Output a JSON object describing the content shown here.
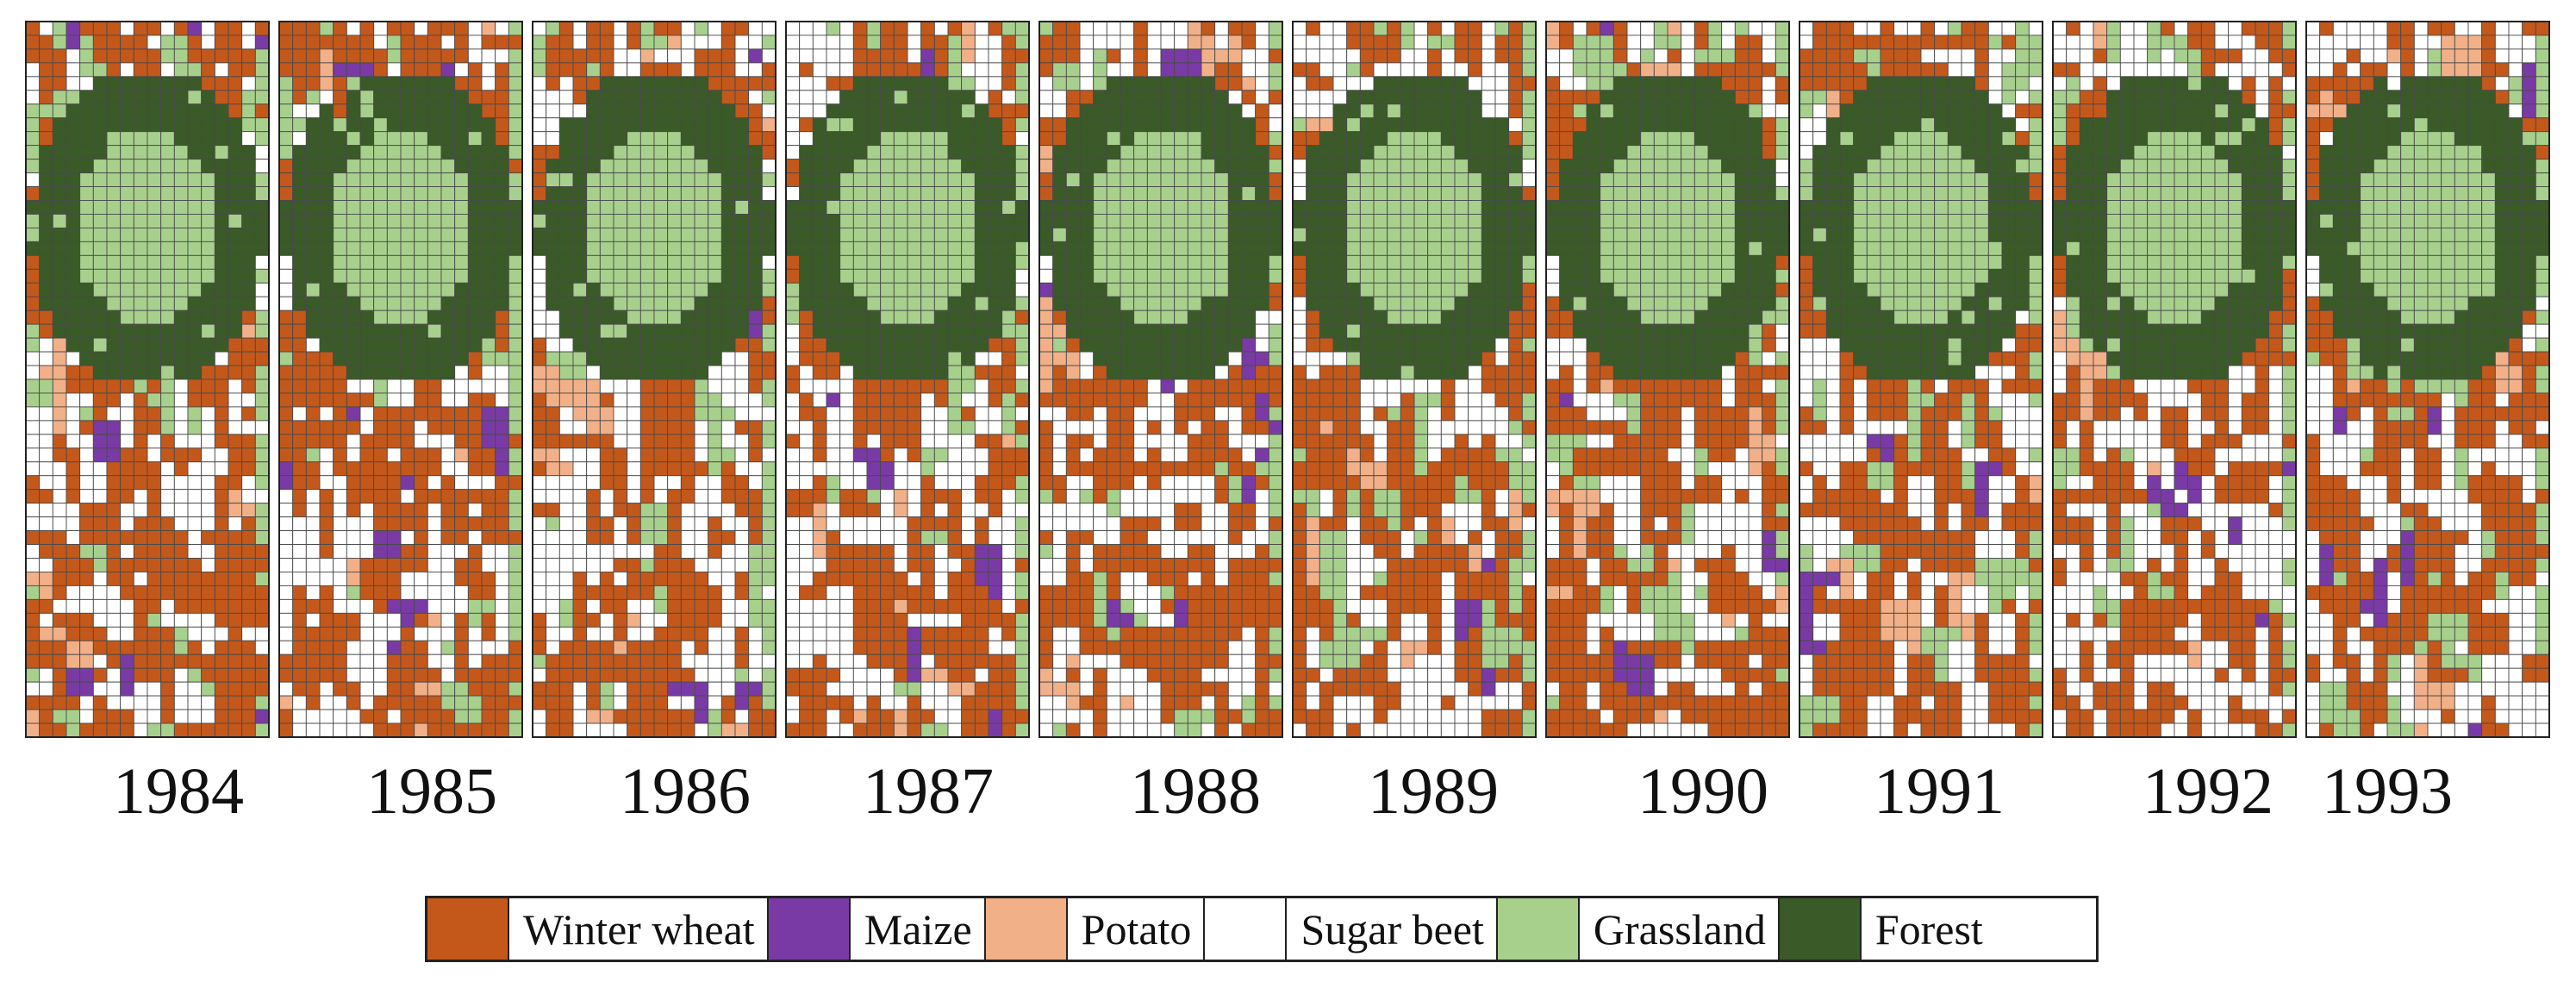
{
  "colors": {
    "winter_wheat": "#c4581a",
    "maize": "#7a3aa6",
    "potato": "#f2b088",
    "sugar_beet": "#ffffff",
    "grassland": "#a8d08d",
    "forest": "#3a5a28",
    "grid_line": "#4a4a4a"
  },
  "years": [
    "1984",
    "1985",
    "1986",
    "1987",
    "1988",
    "1989",
    "1990",
    "1991",
    "1992",
    "1993"
  ],
  "legend": [
    {
      "key": "winter_wheat",
      "label": "Winter wheat"
    },
    {
      "key": "maize",
      "label": "Maize"
    },
    {
      "key": "potato",
      "label": "Potato"
    },
    {
      "key": "sugar_beet",
      "label": "Sugar beet"
    },
    {
      "key": "grassland",
      "label": "Grassland"
    },
    {
      "key": "forest",
      "label": "Forest"
    }
  ]
}
